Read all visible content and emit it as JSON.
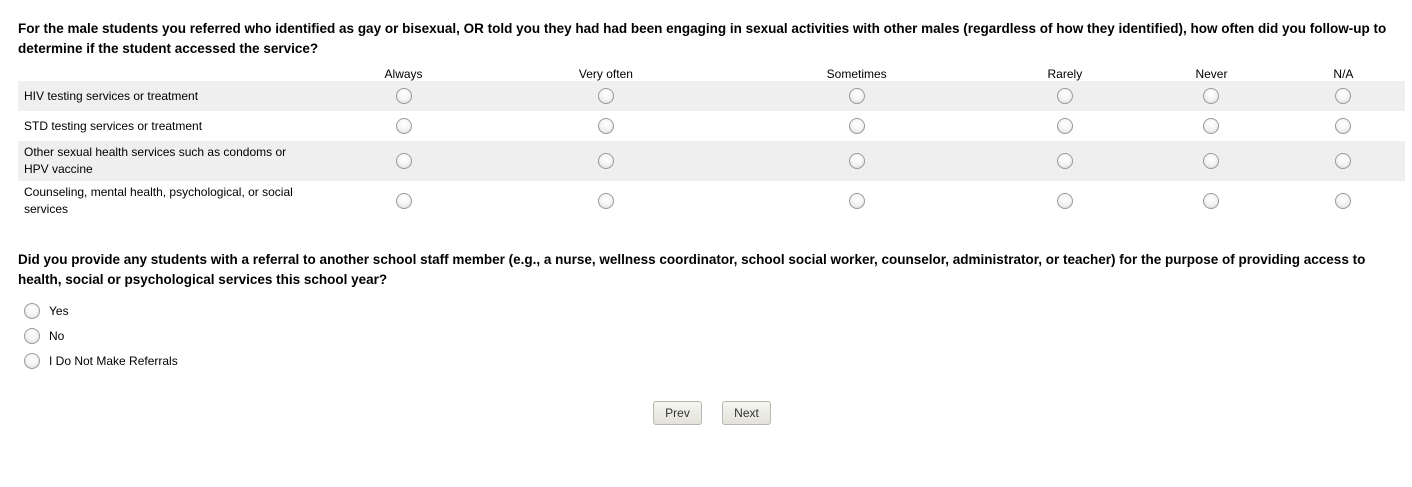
{
  "q1": {
    "text": "For the male students you referred who identified as gay or bisexual, OR told you they had had been engaging in sexual activities with other males (regardless of how they identified), how often did you follow-up to determine if the student accessed the service?",
    "columns": [
      "Always",
      "Very often",
      "Sometimes",
      "Rarely",
      "Never",
      "N/A"
    ],
    "rows": [
      "HIV testing services or treatment",
      "STD testing services or treatment",
      "Other sexual health services such as condoms or HPV vaccine",
      "Counseling, mental health, psychological, or social services"
    ]
  },
  "q2": {
    "text": "Did you provide any students with a referral to another school staff member (e.g., a nurse, wellness coordinator, school social worker, counselor, administrator, or teacher) for the purpose of providing access to health, social or psychological services this school year?",
    "options": [
      "Yes",
      "No",
      "I Do Not Make Referrals"
    ]
  },
  "nav": {
    "prev": "Prev",
    "next": "Next"
  }
}
